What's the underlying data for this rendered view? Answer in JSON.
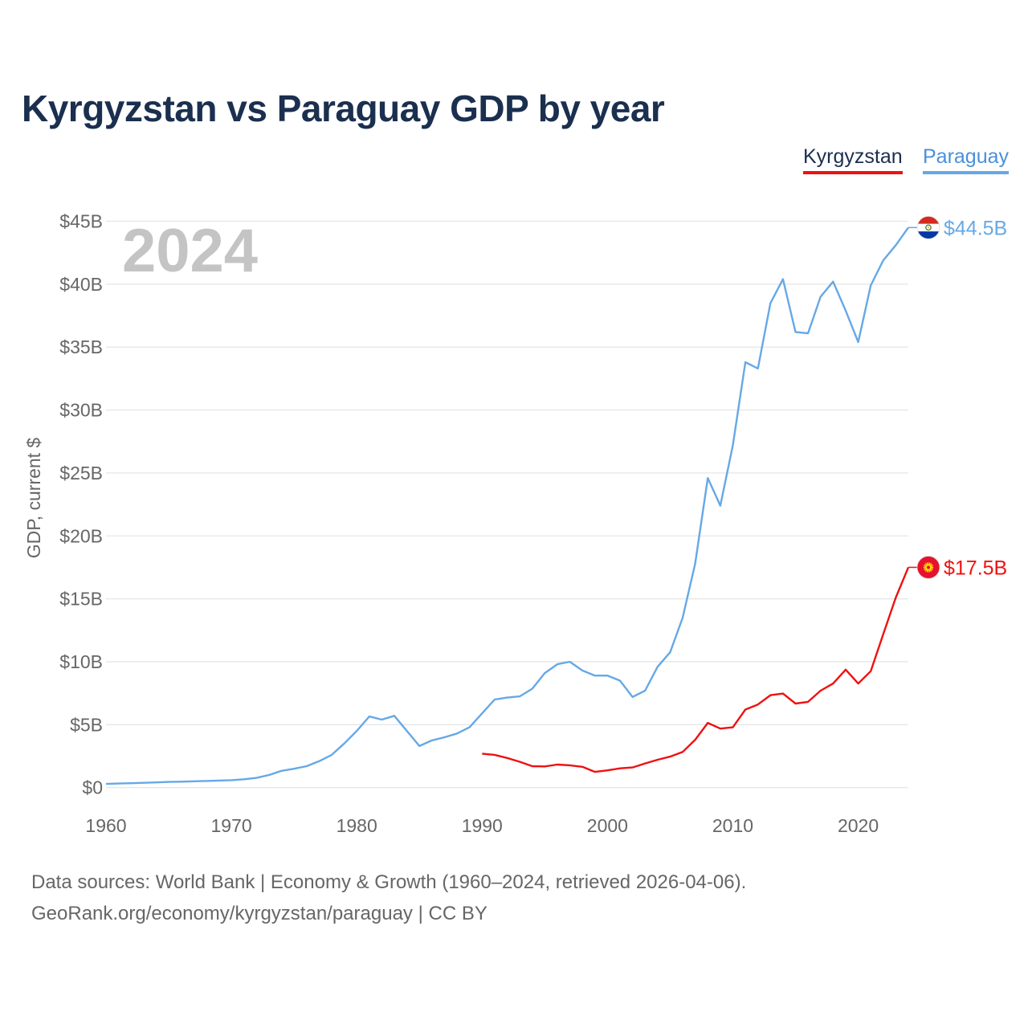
{
  "colors": {
    "kyrgyzstan": "#ee1111",
    "paraguay": "#66a8e6",
    "title": "#1b2f4f",
    "axis_text": "#666666",
    "year_watermark": "#c4c4c4",
    "grid": "#e6e6e6"
  },
  "legend": {
    "kyrgyzstan": "Kyrgyzstan",
    "paraguay": "Paraguay"
  },
  "icons": {
    "paraguay_flag": "paraguay-flag-icon",
    "kyrgyzstan_flag": "kyrgyzstan-flag-icon"
  },
  "chart_data": {
    "type": "line",
    "title": "Kyrgyzstan vs Paraguay GDP by year",
    "ylabel": "GDP, current $",
    "xlabel": "",
    "current_year": "2024",
    "xlim": [
      1960,
      2024
    ],
    "ylim": [
      -2,
      46.5
    ],
    "y_ticks": [
      {
        "value": 0,
        "label": "$0"
      },
      {
        "value": 5,
        "label": "$5B"
      },
      {
        "value": 10,
        "label": "$10B"
      },
      {
        "value": 15,
        "label": "$15B"
      },
      {
        "value": 20,
        "label": "$20B"
      },
      {
        "value": 25,
        "label": "$25B"
      },
      {
        "value": 30,
        "label": "$30B"
      },
      {
        "value": 35,
        "label": "$35B"
      },
      {
        "value": 40,
        "label": "$40B"
      },
      {
        "value": 45,
        "label": "$45B"
      }
    ],
    "x_ticks": [
      {
        "value": 1960,
        "label": "1960"
      },
      {
        "value": 1970,
        "label": "1970"
      },
      {
        "value": 1980,
        "label": "1980"
      },
      {
        "value": 1990,
        "label": "1990"
      },
      {
        "value": 2000,
        "label": "2000"
      },
      {
        "value": 2010,
        "label": "2010"
      },
      {
        "value": 2020,
        "label": "2020"
      }
    ],
    "units": "billion US$",
    "series": [
      {
        "key": "paraguay",
        "name": "Paraguay",
        "end_label": "$44.5B",
        "x": [
          1960,
          1961,
          1962,
          1963,
          1964,
          1965,
          1966,
          1967,
          1968,
          1969,
          1970,
          1971,
          1972,
          1973,
          1974,
          1975,
          1976,
          1977,
          1978,
          1979,
          1980,
          1981,
          1982,
          1983,
          1984,
          1985,
          1986,
          1987,
          1988,
          1989,
          1990,
          1991,
          1992,
          1993,
          1994,
          1995,
          1996,
          1997,
          1998,
          1999,
          2000,
          2001,
          2002,
          2003,
          2004,
          2005,
          2006,
          2007,
          2008,
          2009,
          2010,
          2011,
          2012,
          2013,
          2014,
          2015,
          2016,
          2017,
          2018,
          2019,
          2020,
          2021,
          2022,
          2023,
          2024
        ],
        "values": [
          0.29,
          0.32,
          0.35,
          0.38,
          0.41,
          0.45,
          0.47,
          0.5,
          0.53,
          0.56,
          0.59,
          0.66,
          0.77,
          1.0,
          1.33,
          1.5,
          1.7,
          2.1,
          2.6,
          3.5,
          4.5,
          5.65,
          5.4,
          5.7,
          4.5,
          3.3,
          3.75,
          4.0,
          4.3,
          4.8,
          5.9,
          7.0,
          7.15,
          7.25,
          7.85,
          9.1,
          9.8,
          10.0,
          9.3,
          8.9,
          8.9,
          8.5,
          7.2,
          7.7,
          9.6,
          10.75,
          13.5,
          17.8,
          24.6,
          22.4,
          27.2,
          33.8,
          33.3,
          38.5,
          40.4,
          36.2,
          36.1,
          39.0,
          40.2,
          37.9,
          35.4,
          39.9,
          41.9,
          43.1,
          44.5
        ]
      },
      {
        "key": "kyrgyzstan",
        "name": "Kyrgyzstan",
        "end_label": "$17.5B",
        "x": [
          1990,
          1991,
          1992,
          1993,
          1994,
          1995,
          1996,
          1997,
          1998,
          1999,
          2000,
          2001,
          2002,
          2003,
          2004,
          2005,
          2006,
          2007,
          2008,
          2009,
          2010,
          2011,
          2012,
          2013,
          2014,
          2015,
          2016,
          2017,
          2018,
          2019,
          2020,
          2021,
          2022,
          2023,
          2024
        ],
        "values": [
          2.7,
          2.6,
          2.35,
          2.05,
          1.7,
          1.68,
          1.83,
          1.77,
          1.65,
          1.25,
          1.37,
          1.53,
          1.6,
          1.92,
          2.21,
          2.46,
          2.83,
          3.8,
          5.14,
          4.69,
          4.79,
          6.2,
          6.6,
          7.34,
          7.47,
          6.68,
          6.81,
          7.7,
          8.27,
          9.37,
          8.27,
          9.25,
          12.2,
          15.1,
          17.5
        ]
      }
    ]
  },
  "footer": {
    "source": "Data sources: World Bank | Economy & Growth (1960–2024, retrieved 2026-04-06).",
    "url": "GeoRank.org/economy/kyrgyzstan/paraguay | CC BY"
  }
}
